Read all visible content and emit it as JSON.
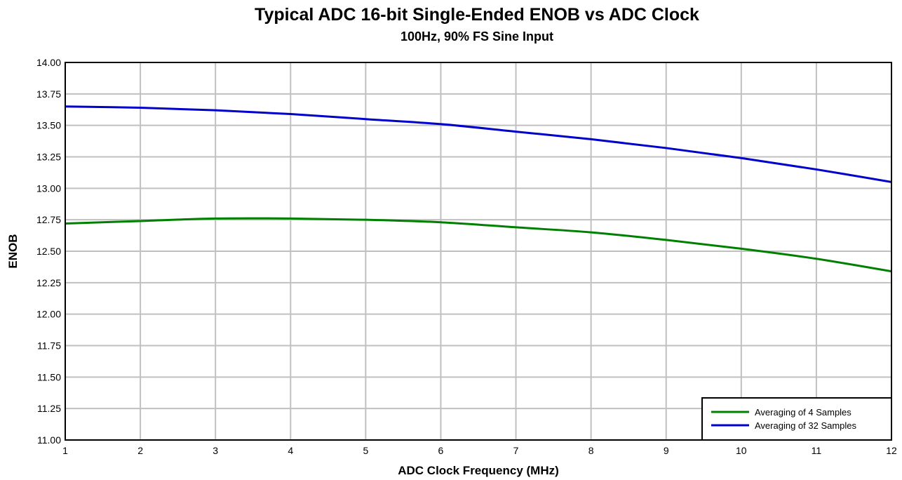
{
  "chart_data": {
    "type": "line",
    "title": "Typical ADC 16-bit Single-Ended ENOB vs ADC Clock",
    "subtitle": "100Hz, 90% FS Sine Input",
    "xlabel": "ADC Clock Frequency (MHz)",
    "ylabel": "ENOB",
    "xlim": [
      1,
      12
    ],
    "ylim": [
      11.0,
      14.0
    ],
    "x_ticks": [
      "1",
      "2",
      "3",
      "4",
      "5",
      "6",
      "7",
      "8",
      "9",
      "10",
      "11",
      "12"
    ],
    "y_ticks": [
      "11.00",
      "11.25",
      "11.50",
      "11.75",
      "12.00",
      "12.25",
      "12.50",
      "12.75",
      "13.00",
      "13.25",
      "13.50",
      "13.75",
      "14.00"
    ],
    "grid": true,
    "legend_position": "bottom-right",
    "x": [
      1,
      2,
      3,
      4,
      5,
      6,
      7,
      8,
      9,
      10,
      11,
      12
    ],
    "series": [
      {
        "name": "Averaging of 4 Samples",
        "color": "#008000",
        "values": [
          12.72,
          12.74,
          12.76,
          12.76,
          12.75,
          12.73,
          12.69,
          12.65,
          12.59,
          12.52,
          12.44,
          12.34
        ]
      },
      {
        "name": "Averaging of 32 Samples",
        "color": "#0000cc",
        "values": [
          13.65,
          13.64,
          13.62,
          13.59,
          13.55,
          13.51,
          13.45,
          13.39,
          13.32,
          13.24,
          13.15,
          13.05
        ]
      }
    ]
  }
}
